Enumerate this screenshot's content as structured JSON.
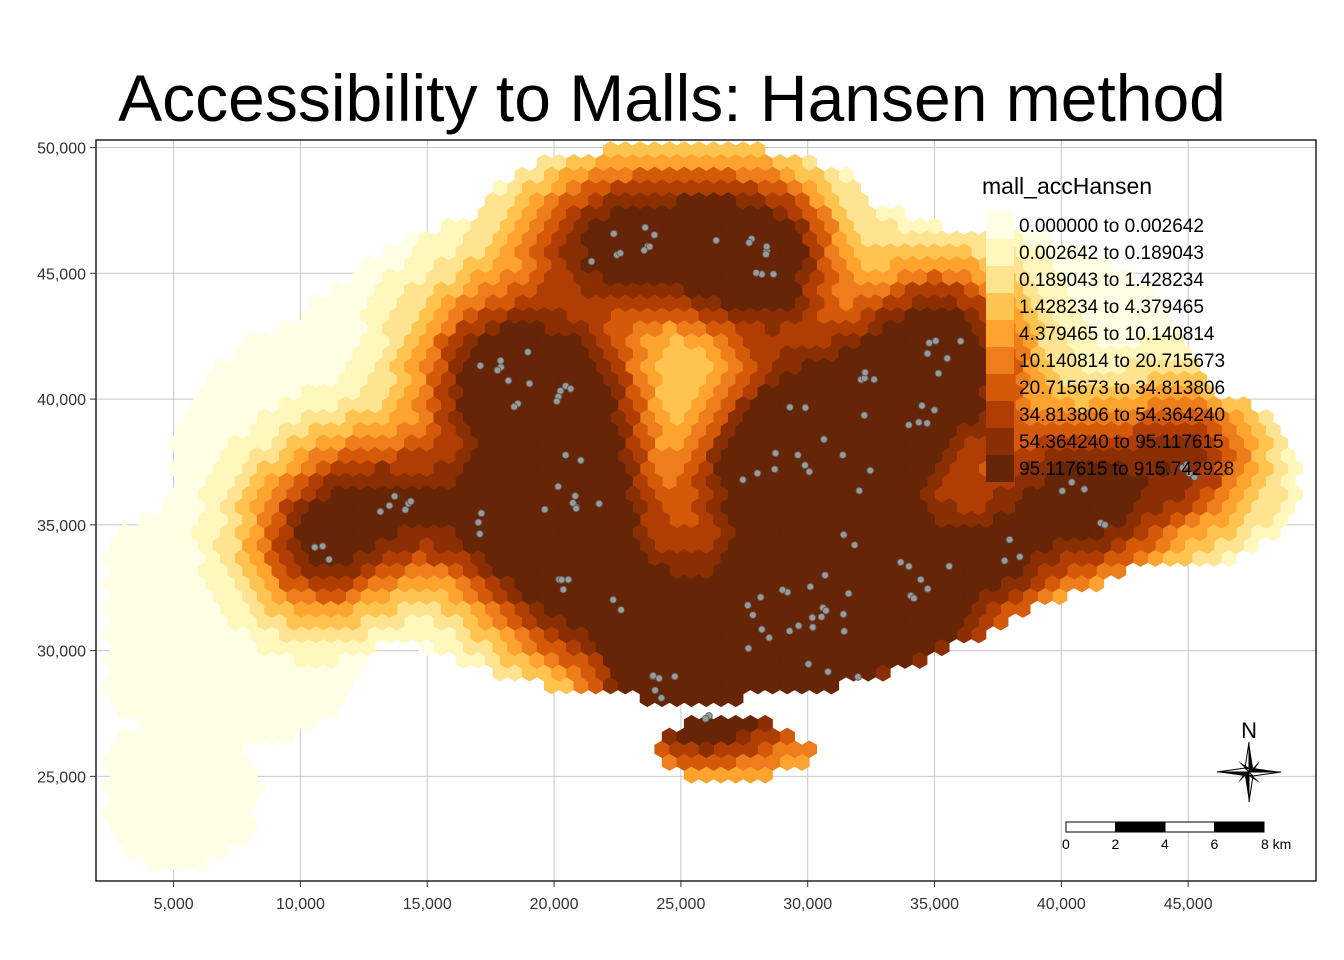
{
  "title": "Accessibility to Malls: Hansen method",
  "x_axis": {
    "ticks": [
      "5,000",
      "10,000",
      "15,000",
      "20,000",
      "25,000",
      "30,000",
      "35,000",
      "40,000",
      "45,000"
    ],
    "values": [
      5000,
      10000,
      15000,
      20000,
      25000,
      30000,
      35000,
      40000,
      45000
    ],
    "range": [
      1940,
      50040
    ]
  },
  "y_axis": {
    "ticks": [
      "25,000",
      "30,000",
      "35,000",
      "40,000",
      "45,000",
      "50,000"
    ],
    "values": [
      25000,
      30000,
      35000,
      40000,
      45000,
      50000
    ],
    "range": [
      20840,
      50300
    ]
  },
  "legend": {
    "title": "mall_accHansen",
    "placement": "top-right",
    "classes": [
      {
        "label": "0.000000 to 0.002642",
        "color": "#ffffe5"
      },
      {
        "label": "0.002642 to 0.189043",
        "color": "#fff7bc"
      },
      {
        "label": "0.189043 to 1.428234",
        "color": "#fee391"
      },
      {
        "label": "1.428234 to 4.379465",
        "color": "#fec44f"
      },
      {
        "label": "4.379465 to 10.140814",
        "color": "#fea32e"
      },
      {
        "label": "10.140814 to 20.715673",
        "color": "#ee7d1c"
      },
      {
        "label": "20.715673 to 34.813806",
        "color": "#d45a0a"
      },
      {
        "label": "34.813806 to 54.364240",
        "color": "#b03e04"
      },
      {
        "label": "54.364240 to 95.117615",
        "color": "#8a2e04"
      },
      {
        "label": "95.117615 to 915.742928",
        "color": "#662506"
      }
    ]
  },
  "mall_point_color": "#999999",
  "north_arrow": {
    "label": "N"
  },
  "scale_bar": {
    "labels": [
      "0",
      "2",
      "4",
      "6",
      "8 km"
    ]
  },
  "grid": true
}
